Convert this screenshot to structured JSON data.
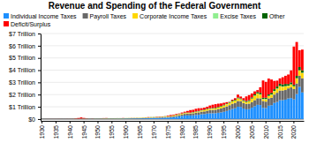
{
  "chart_data": {
    "type": "bar",
    "stacked": true,
    "title": "Revenue and Spending of the Federal Government",
    "categories": [
      "1930",
      null,
      null,
      null,
      null,
      "1935",
      null,
      null,
      null,
      null,
      "1940",
      null,
      null,
      null,
      null,
      "1945",
      null,
      null,
      null,
      null,
      "1950",
      null,
      null,
      null,
      null,
      "1955",
      null,
      null,
      null,
      null,
      "1960",
      null,
      null,
      null,
      null,
      "1965",
      null,
      null,
      null,
      null,
      "1970",
      null,
      null,
      null,
      null,
      "1975",
      null,
      null,
      null,
      null,
      "1980",
      null,
      null,
      null,
      null,
      "1985",
      null,
      null,
      null,
      null,
      "1990",
      null,
      null,
      null,
      null,
      "1995",
      null,
      null,
      null,
      null,
      "2000",
      null,
      null,
      null,
      null,
      "2005",
      null,
      null,
      null,
      null,
      "2010",
      null,
      null,
      null,
      null,
      "2015",
      null,
      null,
      null,
      null,
      "2020",
      null,
      null,
      null
    ],
    "series": [
      {
        "name": "Individual Income Taxes",
        "color": "#1E90FF",
        "values": [
          1.1,
          1.0,
          0.4,
          0.7,
          0.4,
          1.0,
          1.4,
          2.2,
          1.6,
          1.0,
          1.0,
          3.3,
          6.5,
          16.0,
          19.7,
          18.4,
          16.1,
          17.9,
          19.3,
          15.6,
          15.8,
          21.6,
          27.9,
          29.8,
          29.5,
          28.7,
          32.2,
          35.6,
          34.7,
          36.7,
          40.7,
          41.3,
          45.6,
          47.6,
          48.7,
          48.8,
          55.4,
          61.5,
          68.7,
          87.2,
          90.4,
          86.2,
          94.7,
          103.2,
          119.0,
          122.4,
          131.6,
          157.6,
          181.0,
          217.8,
          244.1,
          285.9,
          297.7,
          288.9,
          298.4,
          334.5,
          349.0,
          392.6,
          401.2,
          445.7,
          466.9,
          467.8,
          476.0,
          509.7,
          543.1,
          590.2,
          656.4,
          737.5,
          828.6,
          879.5,
          1004.5,
          994.3,
          858.3,
          793.7,
          809.0,
          927.2,
          1043.9,
          1163.5,
          1145.7,
          915.3,
          898.5,
          1091.5,
          1132.2,
          1316.4,
          1394.6,
          1540.8,
          1546.1,
          1587.1,
          1683.5,
          1718.0,
          1609.0,
          2044.0,
          2632.0,
          2177.0
        ]
      },
      {
        "name": "Payroll Taxes",
        "color": "#696969",
        "values": [
          0.2,
          0.2,
          0.2,
          0.2,
          0.2,
          0.3,
          0.5,
          0.8,
          0.6,
          0.6,
          0.7,
          1.0,
          1.2,
          1.4,
          1.5,
          1.6,
          1.6,
          1.7,
          1.7,
          1.7,
          3.8,
          5.5,
          6.5,
          6.8,
          6.9,
          6.6,
          7.2,
          8.5,
          8.5,
          9.0,
          11.2,
          12.2,
          12.5,
          13.5,
          14.2,
          14.7,
          16.9,
          19.3,
          21.8,
          24.1,
          28.8,
          29.9,
          33.0,
          41.8,
          49.3,
          52.0,
          59.9,
          71.5,
          81.8,
          98.1,
          114.0,
          133.5,
          145.3,
          154.9,
          170.4,
          183.1,
          199.0,
          209.3,
          221.3,
          240.0,
          262.7,
          273.3,
          286.5,
          310.4,
          328.0,
          352.7,
          374.2,
          395.2,
          419.3,
          442.0,
          469.8,
          467.2,
          453.0,
          449.4,
          451.8,
          457.6,
          497.5,
          539.7,
          546.0,
          564.0,
          525.0,
          599.0,
          616.0,
          682.0,
          756.0,
          792.0,
          789.0,
          788.0,
          824.0,
          870.0,
          845.0,
          869.0,
          908.0,
          1161.0
        ]
      },
      {
        "name": "Corporate Income Taxes",
        "color": "#FFD700",
        "values": [
          0.8,
          0.8,
          0.3,
          0.4,
          0.4,
          0.7,
          0.9,
          1.4,
          1.1,
          1.2,
          1.1,
          3.4,
          9.3,
          9.6,
          14.8,
          16.1,
          12.0,
          8.6,
          9.7,
          11.2,
          10.4,
          14.1,
          21.2,
          21.2,
          21.1,
          17.9,
          20.9,
          21.2,
          20.1,
          17.3,
          21.5,
          20.9,
          20.5,
          21.6,
          23.5,
          25.5,
          30.1,
          34.0,
          28.7,
          36.7,
          32.8,
          26.8,
          32.2,
          36.2,
          38.6,
          40.6,
          41.4,
          54.9,
          60.0,
          65.7,
          64.6,
          61.1,
          49.2,
          37.0,
          56.9,
          61.3,
          63.1,
          83.9,
          94.5,
          103.3,
          93.5,
          98.1,
          100.3,
          117.5,
          140.4,
          157.0,
          171.8,
          182.3,
          189.5,
          184.7,
          207.3,
          151.1,
          148.0,
          131.8,
          189.4,
          278.3,
          353.9,
          370.2,
          304.3,
          138.2,
          191.4,
          181.1,
          242.3,
          273.5,
          320.7,
          343.8,
          300.1,
          297.0,
          204.7,
          230.2,
          212.0,
          402.0,
          425.0,
          420.0
        ]
      },
      {
        "name": "Excise Taxes",
        "color": "#90EE90",
        "values": [
          0.6,
          0.6,
          0.5,
          0.5,
          0.5,
          0.5,
          0.5,
          0.5,
          0.5,
          0.8,
          0.6,
          0.7,
          0.8,
          0.8,
          0.9,
          1.0,
          1.3,
          1.6,
          1.8,
          1.6,
          1.9,
          2.0,
          2.1,
          2.2,
          2.5,
          2.6,
          2.8,
          2.8,
          2.7,
          2.8,
          3.3,
          3.8,
          4.0,
          4.2,
          4.4,
          4.7,
          5.0,
          5.0,
          5.2,
          5.5,
          5.8,
          5.8,
          5.6,
          5.9,
          6.3,
          6.4,
          6.5,
          7.3,
          9.5,
          9.1,
          9.0,
          10.6,
          12.0,
          14.4,
          16.0,
          16.0,
          16.9,
          16.8,
          16.8,
          17.0,
          16.7,
          15.7,
          16.2,
          16.2,
          16.5,
          17.0,
          17.7,
          18.8,
          19.6,
          18.4,
          18.9,
          18.8,
          18.6,
          20.3,
          21.4,
          22.4,
          24.2,
          24.4,
          26.5,
          25.5,
          25.4,
          27.2,
          26.3,
          28.1,
          29.5,
          27.2,
          27.0,
          24.2,
          24.2,
          24.4,
          16.0,
          26.0,
          28.0,
          32.0
        ]
      },
      {
        "name": "Other",
        "color": "#006400",
        "values": [
          0.3,
          0.2,
          0.2,
          0.2,
          0.2,
          0.3,
          0.3,
          0.5,
          0.4,
          0.4,
          0.4,
          0.6,
          0.8,
          1.0,
          1.4,
          1.4,
          1.3,
          1.2,
          1.2,
          0.9,
          0.9,
          1.1,
          1.4,
          1.8,
          2.1,
          2.4,
          2.6,
          2.8,
          3.0,
          3.2,
          3.6,
          3.8,
          4.0,
          4.5,
          4.8,
          5.3,
          5.9,
          6.0,
          6.8,
          7.6,
          9.2,
          10.0,
          11.5,
          12.7,
          13.5,
          14.8,
          16.5,
          17.2,
          18.8,
          20.3,
          24.3,
          27.8,
          27.7,
          27.5,
          29.8,
          31.7,
          32.1,
          33.2,
          37.1,
          39.8,
          44.1,
          47.1,
          47.3,
          47.4,
          45.8,
          48.2,
          50.9,
          51.6,
          56.4,
          55.9,
          60.9,
          62.1,
          72.9,
          78.0,
          75.5,
          87.6,
          95.6,
          108.0,
          120.7,
          100.6,
          109.2,
          111.9,
          127.0,
          142.0,
          159.6,
          184.2,
          174.7,
          176.0,
          127.8,
          153.7,
          120.0,
          190.0,
          264.0,
          200.0
        ]
      },
      {
        "name": "Deficit/Surplus",
        "color": "#FF0000",
        "values": [
          0.5,
          0.5,
          2.7,
          2.6,
          3.6,
          2.8,
          4.4,
          2.8,
          1.2,
          3.9,
          3.0,
          6.0,
          21.5,
          55.0,
          91.3,
          47.6,
          15.9,
          4.0,
          11.8,
          1.8,
          3.1,
          6.1,
          14.4,
          18.4,
          1.2,
          3.0,
          3.9,
          2.8,
          2.9,
          13.0,
          0.3,
          3.3,
          7.1,
          4.8,
          5.9,
          1.4,
          3.7,
          8.6,
          25.1,
          3.2,
          2.8,
          23.0,
          23.4,
          14.9,
          6.1,
          53.2,
          73.7,
          53.6,
          59.2,
          40.7,
          73.8,
          78.9,
          127.9,
          207.8,
          185.4,
          212.3,
          221.2,
          149.7,
          155.1,
          152.6,
          221.0,
          269.2,
          290.3,
          255.1,
          203.2,
          163.9,
          107.4,
          21.9,
          69.3,
          125.6,
          236.2,
          149.0,
          157.8,
          377.6,
          412.7,
          318.3,
          248.2,
          160.7,
          458.5,
          1412.7,
          1293.5,
          1299.6,
          1089.4,
          679.5,
          483.4,
          438.5,
          584.7,
          665.7,
          779.0,
          984.0,
          3130.0,
          2775.0,
          1375.0,
          1695.0
        ]
      }
    ],
    "ylim": [
      -150,
      7000
    ],
    "yticks": [
      {
        "value": 0,
        "label": "$0"
      },
      {
        "value": 1000,
        "label": "$1 Trillion"
      },
      {
        "value": 2000,
        "label": "$2 Trillion"
      },
      {
        "value": 3000,
        "label": "$3 Trillion"
      },
      {
        "value": 4000,
        "label": "$4 Trillion"
      },
      {
        "value": 5000,
        "label": "$5 Trillion"
      },
      {
        "value": 6000,
        "label": "$6 Trillion"
      },
      {
        "value": 7000,
        "label": "$7 Trillion"
      }
    ],
    "grid": true,
    "legend": "top"
  }
}
